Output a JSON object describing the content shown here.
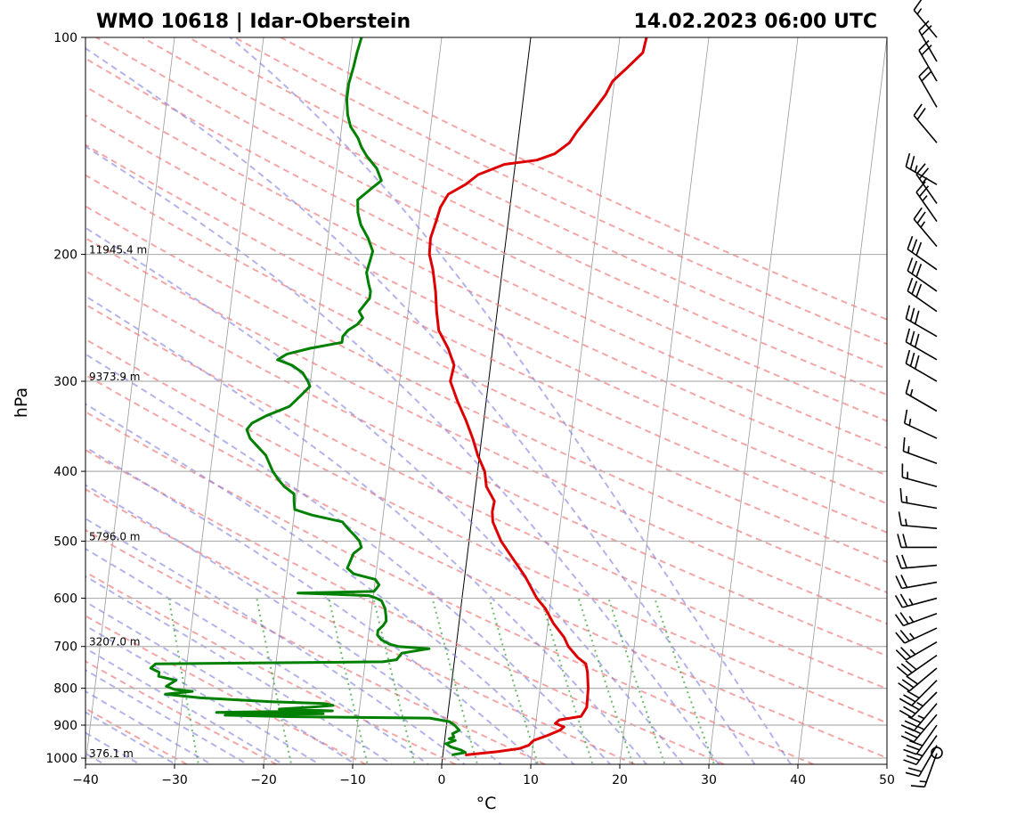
{
  "title_left": "WMO 10618 | Idar-Oberstein",
  "title_right": "14.02.2023 06:00 UTC",
  "chart_data": {
    "type": "line",
    "diagram": "skew-T log-p",
    "xlabel": "°C",
    "ylabel": "hPa",
    "xlim": [
      -40,
      50
    ],
    "ylim": [
      1020,
      100
    ],
    "y_scale": "log",
    "x_ticks": [
      -40,
      -30,
      -20,
      -10,
      0,
      10,
      20,
      30,
      40,
      50
    ],
    "x_tick_labels": [
      "−40",
      "−30",
      "−20",
      "−10",
      "0",
      "10",
      "20",
      "30",
      "40",
      "50"
    ],
    "y_ticks": [
      100,
      200,
      300,
      400,
      500,
      600,
      700,
      800,
      900,
      1000
    ],
    "y_tick_labels": [
      "100",
      "200",
      "300",
      "400",
      "500",
      "600",
      "700",
      "800",
      "900",
      "1000"
    ],
    "grid": true,
    "height_labels": [
      {
        "p": 200,
        "text": "11945.4 m"
      },
      {
        "p": 300,
        "text": "9373.9 m"
      },
      {
        "p": 500,
        "text": "5796.0 m"
      },
      {
        "p": 700,
        "text": "3207.0 m"
      },
      {
        "p": 1000,
        "text": "376.1 m"
      }
    ],
    "colors": {
      "temperature": "#dd0000",
      "dewpoint": "#008000",
      "dry_adiabat": "#f08080",
      "moist_adiabat": "#8080e0",
      "mixing_ratio": "#2e9e2e",
      "isotherm": "#808080",
      "zero_isotherm": "#000000"
    },
    "series": [
      {
        "role": "temperature",
        "points": [
          [
            990,
            2.5
          ],
          [
            980,
            6.0
          ],
          [
            970,
            8.5
          ],
          [
            960,
            9.5
          ],
          [
            945,
            10.0
          ],
          [
            930,
            11.5
          ],
          [
            915,
            12.8
          ],
          [
            905,
            13.2
          ],
          [
            895,
            12.2
          ],
          [
            885,
            12.6
          ],
          [
            875,
            15.0
          ],
          [
            850,
            15.5
          ],
          [
            800,
            15.4
          ],
          [
            760,
            15.1
          ],
          [
            740,
            14.8
          ],
          [
            725,
            13.8
          ],
          [
            700,
            12.6
          ],
          [
            680,
            12.0
          ],
          [
            650,
            10.6
          ],
          [
            620,
            9.5
          ],
          [
            600,
            8.4
          ],
          [
            560,
            6.8
          ],
          [
            520,
            4.7
          ],
          [
            500,
            3.6
          ],
          [
            470,
            2.4
          ],
          [
            455,
            2.2
          ],
          [
            440,
            2.3
          ],
          [
            420,
            1.2
          ],
          [
            400,
            0.8
          ],
          [
            380,
            -0.2
          ],
          [
            360,
            -1.0
          ],
          [
            340,
            -2.0
          ],
          [
            320,
            -3.2
          ],
          [
            300,
            -4.3
          ],
          [
            285,
            -4.1
          ],
          [
            270,
            -5.0
          ],
          [
            255,
            -6.3
          ],
          [
            240,
            -6.8
          ],
          [
            225,
            -7.2
          ],
          [
            210,
            -7.8
          ],
          [
            200,
            -8.4
          ],
          [
            190,
            -8.5
          ],
          [
            180,
            -8.1
          ],
          [
            172,
            -7.8
          ],
          [
            165,
            -7.1
          ],
          [
            160,
            -5.3
          ],
          [
            155,
            -4.0
          ],
          [
            150,
            -1.2
          ],
          [
            148,
            2.4
          ],
          [
            145,
            4.3
          ],
          [
            140,
            5.8
          ],
          [
            135,
            6.5
          ],
          [
            130,
            7.4
          ],
          [
            125,
            8.3
          ],
          [
            120,
            9.2
          ],
          [
            115,
            9.8
          ],
          [
            110,
            11.3
          ],
          [
            105,
            12.8
          ],
          [
            100,
            13.0
          ]
        ]
      },
      {
        "role": "dewpoint",
        "points": [
          [
            990,
            1.0
          ],
          [
            982,
            2.5
          ],
          [
            975,
            2.0
          ],
          [
            965,
            0.8
          ],
          [
            955,
            0.2
          ],
          [
            945,
            1.2
          ],
          [
            940,
            0.5
          ],
          [
            935,
            1.0
          ],
          [
            925,
            0.8
          ],
          [
            915,
            1.5
          ],
          [
            900,
            0.9
          ],
          [
            890,
            0.3
          ],
          [
            880,
            -2.0
          ],
          [
            876,
            -18.0
          ],
          [
            872,
            -25.0
          ],
          [
            868,
            -14.0
          ],
          [
            864,
            -26.0
          ],
          [
            860,
            -13.0
          ],
          [
            855,
            -19.0
          ],
          [
            850,
            -15.5
          ],
          [
            845,
            -13.0
          ],
          [
            840,
            -14.0
          ],
          [
            835,
            -20.0
          ],
          [
            825,
            -28.0
          ],
          [
            815,
            -32.0
          ],
          [
            808,
            -29.0
          ],
          [
            803,
            -31.0
          ],
          [
            795,
            -32.0
          ],
          [
            780,
            -31.0
          ],
          [
            770,
            -33.0
          ],
          [
            760,
            -33.0
          ],
          [
            750,
            -34.0
          ],
          [
            740,
            -33.5
          ],
          [
            735,
            -8.0
          ],
          [
            730,
            -6.5
          ],
          [
            715,
            -6.0
          ],
          [
            705,
            -3.0
          ],
          [
            700,
            -6.5
          ],
          [
            695,
            -7.5
          ],
          [
            685,
            -8.5
          ],
          [
            675,
            -9.0
          ],
          [
            665,
            -9.0
          ],
          [
            655,
            -8.5
          ],
          [
            645,
            -8.2
          ],
          [
            635,
            -8.3
          ],
          [
            620,
            -8.5
          ],
          [
            605,
            -9.0
          ],
          [
            600,
            -9.6
          ],
          [
            595,
            -10.5
          ],
          [
            590,
            -18.5
          ],
          [
            587,
            -10.0
          ],
          [
            583,
            -9.8
          ],
          [
            575,
            -9.5
          ],
          [
            565,
            -10.0
          ],
          [
            555,
            -12.5
          ],
          [
            545,
            -13.3
          ],
          [
            530,
            -13.0
          ],
          [
            520,
            -12.8
          ],
          [
            510,
            -12.0
          ],
          [
            500,
            -12.3
          ],
          [
            490,
            -13.0
          ],
          [
            480,
            -13.8
          ],
          [
            470,
            -14.5
          ],
          [
            460,
            -18.0
          ],
          [
            452,
            -20.0
          ],
          [
            440,
            -20.2
          ],
          [
            430,
            -20.3
          ],
          [
            420,
            -21.5
          ],
          [
            410,
            -22.3
          ],
          [
            400,
            -23.0
          ],
          [
            390,
            -23.5
          ],
          [
            380,
            -24.0
          ],
          [
            370,
            -25.0
          ],
          [
            360,
            -26.0
          ],
          [
            350,
            -26.5
          ],
          [
            343,
            -26.0
          ],
          [
            335,
            -24.5
          ],
          [
            325,
            -22.0
          ],
          [
            315,
            -21.0
          ],
          [
            305,
            -20.0
          ],
          [
            300,
            -20.3
          ],
          [
            292,
            -21.0
          ],
          [
            285,
            -22.3
          ],
          [
            280,
            -24.0
          ],
          [
            275,
            -23.0
          ],
          [
            270,
            -20.5
          ],
          [
            265,
            -17.0
          ],
          [
            260,
            -17.0
          ],
          [
            255,
            -16.5
          ],
          [
            250,
            -15.5
          ],
          [
            245,
            -15.0
          ],
          [
            240,
            -15.5
          ],
          [
            235,
            -15.0
          ],
          [
            230,
            -14.5
          ],
          [
            225,
            -14.5
          ],
          [
            220,
            -14.8
          ],
          [
            212,
            -15.2
          ],
          [
            205,
            -15.0
          ],
          [
            198,
            -14.8
          ],
          [
            190,
            -15.5
          ],
          [
            182,
            -16.5
          ],
          [
            175,
            -17.0
          ],
          [
            168,
            -17.2
          ],
          [
            162,
            -15.8
          ],
          [
            158,
            -14.8
          ],
          [
            152,
            -15.5
          ],
          [
            146,
            -16.8
          ],
          [
            142,
            -17.5
          ],
          [
            138,
            -18.0
          ],
          [
            133,
            -19.0
          ],
          [
            128,
            -19.5
          ],
          [
            122,
            -19.8
          ],
          [
            116,
            -19.8
          ],
          [
            110,
            -19.5
          ],
          [
            105,
            -19.3
          ],
          [
            100,
            -19.0
          ]
        ]
      }
    ],
    "wind_barbs": {
      "units": "kt",
      "levels": [
        {
          "p": 1000,
          "speed": 0,
          "direction": 0
        },
        {
          "p": 985,
          "speed": 15,
          "direction": 200
        },
        {
          "p": 960,
          "speed": 20,
          "direction": 210
        },
        {
          "p": 930,
          "speed": 25,
          "direction": 215
        },
        {
          "p": 900,
          "speed": 30,
          "direction": 215
        },
        {
          "p": 870,
          "speed": 35,
          "direction": 220
        },
        {
          "p": 840,
          "speed": 35,
          "direction": 220
        },
        {
          "p": 810,
          "speed": 35,
          "direction": 225
        },
        {
          "p": 780,
          "speed": 30,
          "direction": 225
        },
        {
          "p": 750,
          "speed": 30,
          "direction": 230
        },
        {
          "p": 720,
          "speed": 30,
          "direction": 235
        },
        {
          "p": 690,
          "speed": 25,
          "direction": 240
        },
        {
          "p": 660,
          "speed": 25,
          "direction": 245
        },
        {
          "p": 630,
          "speed": 25,
          "direction": 250
        },
        {
          "p": 600,
          "speed": 25,
          "direction": 255
        },
        {
          "p": 570,
          "speed": 20,
          "direction": 260
        },
        {
          "p": 540,
          "speed": 20,
          "direction": 265
        },
        {
          "p": 510,
          "speed": 20,
          "direction": 270
        },
        {
          "p": 480,
          "speed": 15,
          "direction": 275
        },
        {
          "p": 450,
          "speed": 15,
          "direction": 280
        },
        {
          "p": 420,
          "speed": 15,
          "direction": 285
        },
        {
          "p": 390,
          "speed": 15,
          "direction": 290
        },
        {
          "p": 360,
          "speed": 15,
          "direction": 295
        },
        {
          "p": 330,
          "speed": 15,
          "direction": 300
        },
        {
          "p": 300,
          "speed": 30,
          "direction": 300
        },
        {
          "p": 280,
          "speed": 30,
          "direction": 300
        },
        {
          "p": 260,
          "speed": 30,
          "direction": 300
        },
        {
          "p": 240,
          "speed": 30,
          "direction": 305
        },
        {
          "p": 225,
          "speed": 30,
          "direction": 305
        },
        {
          "p": 210,
          "speed": 30,
          "direction": 305
        },
        {
          "p": 195,
          "speed": 25,
          "direction": 320
        },
        {
          "p": 180,
          "speed": 25,
          "direction": 325
        },
        {
          "p": 170,
          "speed": 25,
          "direction": 325
        },
        {
          "p": 160,
          "speed": 25,
          "direction": 300
        },
        {
          "p": 140,
          "speed": 20,
          "direction": 320
        },
        {
          "p": 125,
          "speed": 20,
          "direction": 330
        },
        {
          "p": 115,
          "speed": 20,
          "direction": 330
        },
        {
          "p": 108,
          "speed": 20,
          "direction": 330
        },
        {
          "p": 100,
          "speed": 15,
          "direction": 320
        }
      ]
    }
  }
}
